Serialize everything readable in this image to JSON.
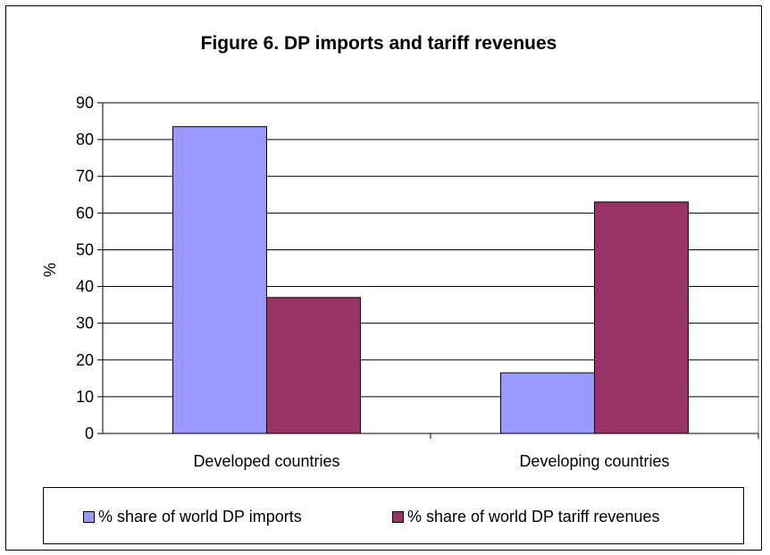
{
  "chart_data": {
    "type": "bar",
    "title": "Figure 6. DP imports and tariff revenues",
    "xlabel": "",
    "ylabel": "%",
    "ylim": [
      0,
      90
    ],
    "yticks": [
      0,
      10,
      20,
      30,
      40,
      50,
      60,
      70,
      80,
      90
    ],
    "categories": [
      "Developed countries",
      "Developing countries"
    ],
    "series": [
      {
        "name": "% share of world DP imports",
        "values": [
          83.5,
          16.5
        ],
        "color": "#9999ff"
      },
      {
        "name": "% share of world DP tariff revenues",
        "values": [
          37,
          63
        ],
        "color": "#993366"
      }
    ],
    "grid": true,
    "plot_background": "#ffffff",
    "legend_position": "bottom"
  }
}
